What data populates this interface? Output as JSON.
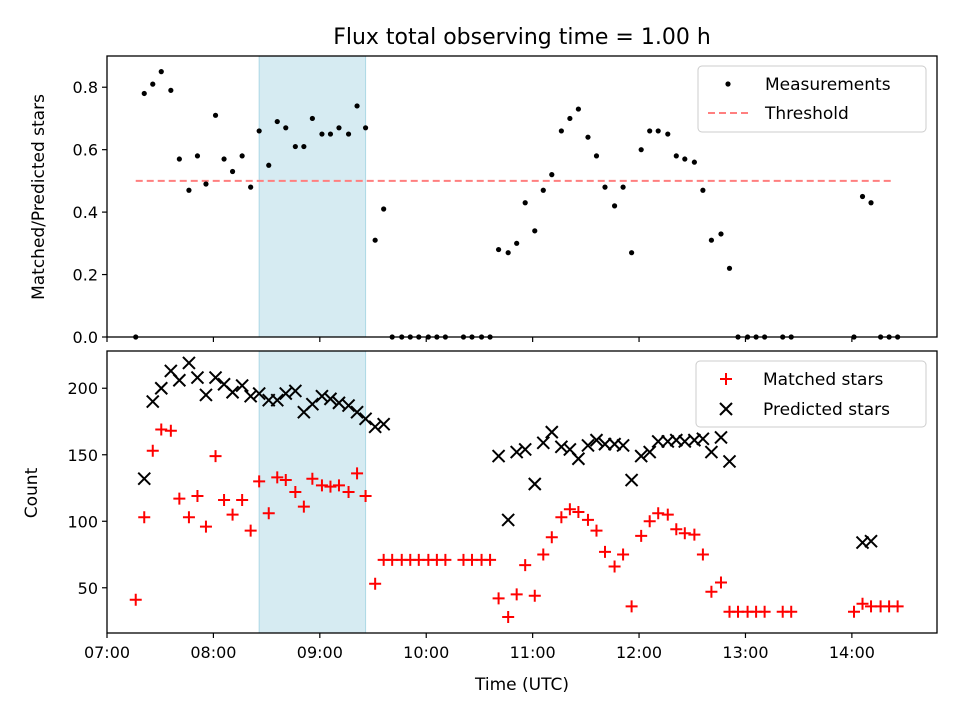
{
  "chart_data": [
    {
      "type": "scatter",
      "title": "Flux total observing time = 1.00 h",
      "xlabel": "",
      "ylabel": "Matched/Predicted stars",
      "xlim": [
        7.0,
        14.8
      ],
      "ylim": [
        0.0,
        0.9
      ],
      "yticks": [
        0.0,
        0.2,
        0.4,
        0.6,
        0.8
      ],
      "ytick_labels": [
        "0.0",
        "0.2",
        "0.4",
        "0.6",
        "0.8"
      ],
      "highlight_span": [
        8.43,
        9.43
      ],
      "highlight_color": "#add8e6",
      "threshold": {
        "name": "Threshold",
        "y": 0.5,
        "x": [
          7.27,
          14.4
        ],
        "color": "#ff7f7f"
      },
      "series": [
        {
          "name": "Measurements",
          "color": "#000000",
          "marker": "dot",
          "x": [
            7.27,
            7.35,
            7.43,
            7.51,
            7.6,
            7.68,
            7.77,
            7.85,
            7.93,
            8.02,
            8.1,
            8.18,
            8.27,
            8.35,
            8.43,
            8.52,
            8.6,
            8.68,
            8.77,
            8.85,
            8.93,
            9.02,
            9.1,
            9.18,
            9.27,
            9.35,
            9.43,
            9.52,
            9.6,
            9.68,
            9.77,
            9.85,
            9.93,
            10.02,
            10.1,
            10.18,
            10.35,
            10.43,
            10.52,
            10.6,
            10.68,
            10.77,
            10.85,
            10.93,
            11.02,
            11.1,
            11.18,
            11.27,
            11.35,
            11.43,
            11.52,
            11.6,
            11.68,
            11.77,
            11.85,
            11.93,
            12.02,
            12.1,
            12.18,
            12.27,
            12.35,
            12.43,
            12.52,
            12.6,
            12.68,
            12.77,
            12.85,
            12.93,
            13.02,
            13.1,
            13.18,
            13.35,
            13.43,
            14.02,
            14.1,
            14.18,
            14.27,
            14.35,
            14.43
          ],
          "y": [
            0.0,
            0.78,
            0.81,
            0.85,
            0.79,
            0.57,
            0.47,
            0.58,
            0.49,
            0.71,
            0.57,
            0.53,
            0.58,
            0.48,
            0.66,
            0.55,
            0.69,
            0.67,
            0.61,
            0.61,
            0.7,
            0.65,
            0.65,
            0.67,
            0.65,
            0.74,
            0.67,
            0.31,
            0.41,
            0.0,
            0.0,
            0.0,
            0.0,
            0.0,
            0.0,
            0.0,
            0.0,
            0.0,
            0.0,
            0.0,
            0.28,
            0.27,
            0.3,
            0.43,
            0.34,
            0.47,
            0.52,
            0.66,
            0.7,
            0.73,
            0.64,
            0.58,
            0.48,
            0.42,
            0.48,
            0.27,
            0.6,
            0.66,
            0.66,
            0.65,
            0.58,
            0.57,
            0.56,
            0.47,
            0.31,
            0.33,
            0.22,
            0.0,
            0.0,
            0.0,
            0.0,
            0.0,
            0.0,
            0.0,
            0.45,
            0.43,
            0.0,
            0.0,
            0.0
          ]
        }
      ],
      "legend": {
        "position": "top-right",
        "entries": [
          "Measurements",
          "Threshold"
        ]
      }
    },
    {
      "type": "scatter",
      "title": "",
      "xlabel": "Time (UTC)",
      "ylabel": "Count",
      "xlim": [
        7.0,
        14.8
      ],
      "ylim": [
        16,
        228
      ],
      "yticks": [
        50,
        100,
        150,
        200
      ],
      "ytick_labels": [
        "50",
        "100",
        "150",
        "200"
      ],
      "xticks": [
        7,
        8,
        9,
        10,
        11,
        12,
        13,
        14
      ],
      "xtick_labels": [
        "07:00",
        "08:00",
        "09:00",
        "10:00",
        "11:00",
        "12:00",
        "13:00",
        "14:00"
      ],
      "highlight_span": [
        8.43,
        9.43
      ],
      "highlight_color": "#add8e6",
      "series": [
        {
          "name": "Matched stars",
          "color": "#ff0000",
          "marker": "plus",
          "x": [
            7.27,
            7.35,
            7.43,
            7.51,
            7.6,
            7.68,
            7.77,
            7.85,
            7.93,
            8.02,
            8.1,
            8.18,
            8.27,
            8.35,
            8.43,
            8.52,
            8.6,
            8.68,
            8.77,
            8.85,
            8.93,
            9.02,
            9.1,
            9.18,
            9.27,
            9.35,
            9.43,
            9.52,
            9.6,
            9.68,
            9.77,
            9.85,
            9.93,
            10.02,
            10.1,
            10.18,
            10.35,
            10.43,
            10.52,
            10.6,
            10.68,
            10.77,
            10.85,
            10.93,
            11.02,
            11.1,
            11.18,
            11.27,
            11.35,
            11.43,
            11.52,
            11.6,
            11.68,
            11.77,
            11.85,
            11.93,
            12.02,
            12.1,
            12.18,
            12.27,
            12.35,
            12.43,
            12.52,
            12.6,
            12.68,
            12.77,
            12.85,
            12.93,
            13.02,
            13.1,
            13.18,
            13.35,
            13.43,
            14.02,
            14.1,
            14.18,
            14.27,
            14.35,
            14.43
          ],
          "y": [
            41,
            103,
            153,
            169,
            168,
            117,
            103,
            119,
            96,
            149,
            116,
            105,
            116,
            93,
            130,
            106,
            133,
            131,
            122,
            111,
            132,
            127,
            126,
            127,
            122,
            136,
            119,
            53,
            71,
            71,
            71,
            71,
            71,
            71,
            71,
            71,
            71,
            71,
            71,
            71,
            42,
            28,
            45,
            67,
            44,
            75,
            88,
            103,
            109,
            107,
            101,
            93,
            77,
            66,
            75,
            36,
            89,
            100,
            106,
            105,
            94,
            91,
            90,
            75,
            47,
            54,
            32,
            32,
            32,
            32,
            32,
            32,
            32,
            32,
            38,
            36,
            36,
            36,
            36
          ]
        },
        {
          "name": "Predicted stars",
          "color": "#000000",
          "marker": "x",
          "x": [
            7.35,
            7.43,
            7.51,
            7.6,
            7.68,
            7.77,
            7.85,
            7.93,
            8.02,
            8.1,
            8.18,
            8.27,
            8.35,
            8.43,
            8.52,
            8.6,
            8.68,
            8.77,
            8.85,
            8.93,
            9.02,
            9.1,
            9.18,
            9.27,
            9.35,
            9.43,
            9.52,
            9.6,
            10.68,
            10.77,
            10.85,
            10.93,
            11.02,
            11.1,
            11.18,
            11.27,
            11.35,
            11.43,
            11.52,
            11.6,
            11.68,
            11.77,
            11.85,
            11.93,
            12.02,
            12.1,
            12.18,
            12.27,
            12.35,
            12.43,
            12.52,
            12.6,
            12.68,
            12.77,
            12.85,
            14.1,
            14.18
          ],
          "y": [
            132,
            190,
            200,
            213,
            206,
            219,
            208,
            195,
            208,
            203,
            197,
            202,
            194,
            196,
            191,
            191,
            196,
            198,
            182,
            188,
            194,
            192,
            189,
            187,
            182,
            177,
            171,
            173,
            149,
            101,
            152,
            154,
            128,
            159,
            167,
            156,
            154,
            147,
            157,
            161,
            158,
            158,
            157,
            131,
            149,
            152,
            160,
            160,
            161,
            160,
            161,
            162,
            152,
            163,
            145,
            84,
            85
          ]
        }
      ],
      "legend": {
        "position": "top-right",
        "entries": [
          "Matched stars",
          "Predicted stars"
        ]
      }
    }
  ]
}
